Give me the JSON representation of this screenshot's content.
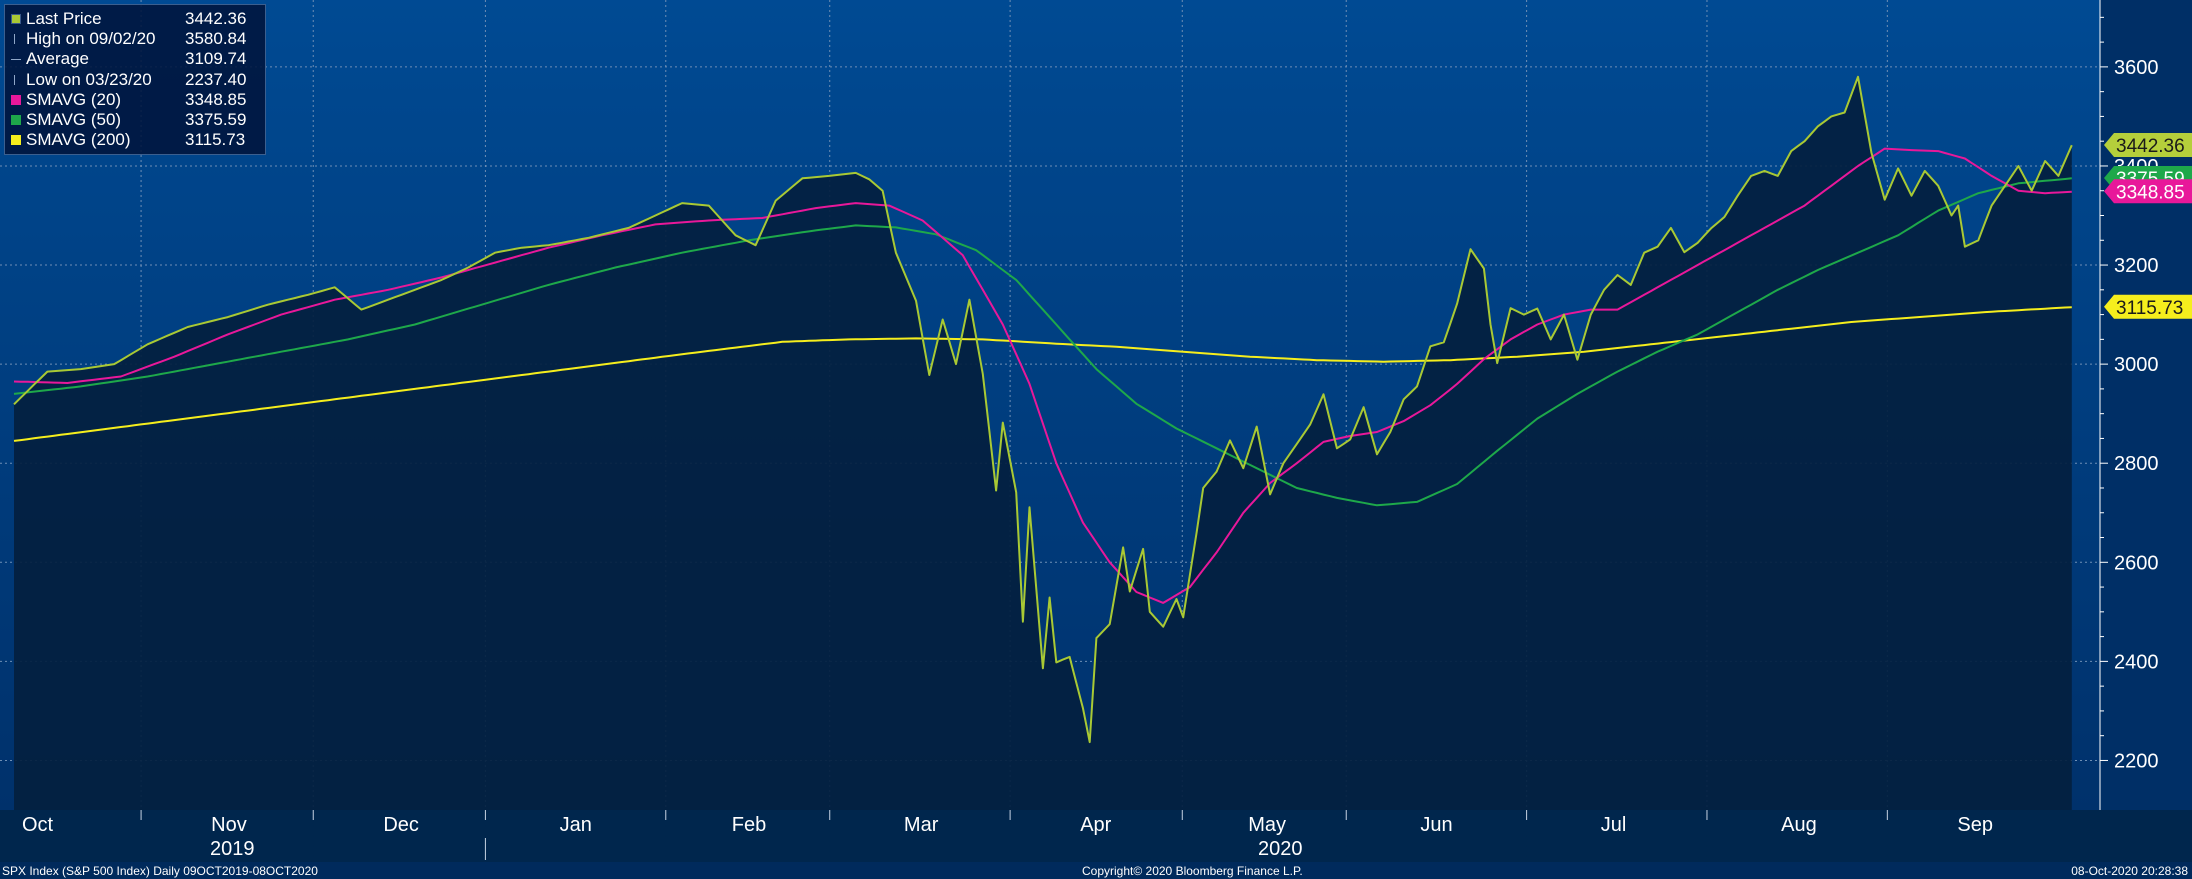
{
  "chart_data": {
    "type": "line",
    "title": "",
    "footer": {
      "left": "SPX Index (S&P 500 Index)  Daily 09OCT2019-08OCT2020",
      "center": "Copyright© 2020 Bloomberg Finance L.P.",
      "right": "08-Oct-2020 20:28:38"
    },
    "y_axis": {
      "position": "right",
      "min": 2100,
      "max": 3735,
      "ticks": [
        2200,
        2400,
        2600,
        2800,
        3000,
        3200,
        3400,
        3600
      ]
    },
    "x_axis": {
      "months": [
        "Oct",
        "Nov",
        "Dec",
        "Jan",
        "Feb",
        "Mar",
        "Apr",
        "May",
        "Jun",
        "Jul",
        "Aug",
        "Sep"
      ],
      "years": [
        "2019",
        "2020"
      ],
      "n_days": 252
    },
    "grid": true,
    "legend": {
      "placement": "top-left",
      "items": [
        {
          "label": "Last Price",
          "value": "3442.36"
        },
        {
          "label": "High on 09/02/20",
          "value": "3580.84"
        },
        {
          "label": "Average",
          "value": "3109.74"
        },
        {
          "label": "Low on 03/23/20",
          "value": "2237.40"
        },
        {
          "label": "SMAVG (20)",
          "value": "3348.85"
        },
        {
          "label": "SMAVG (50)",
          "value": "3375.59"
        },
        {
          "label": "SMAVG (200)",
          "value": "3115.73"
        }
      ]
    },
    "last_value_labels": [
      {
        "text": "3442.36",
        "value": 3442.36,
        "color": "#b5cf3b"
      },
      {
        "text": "3375.59",
        "value": 3375.59,
        "color": "#1ea84a"
      },
      {
        "text": "3348.85",
        "value": 3348.85,
        "color": "#e8189a"
      },
      {
        "text": "3115.73",
        "value": 3115.73,
        "color": "#f5ee1d"
      }
    ],
    "series": [
      {
        "name": "Last Price",
        "color": "#a9c934",
        "keypoints": [
          [
            0,
            2919
          ],
          [
            5,
            2985
          ],
          [
            10,
            2990
          ],
          [
            15,
            3000
          ],
          [
            20,
            3040
          ],
          [
            26,
            3075
          ],
          [
            32,
            3095
          ],
          [
            38,
            3120
          ],
          [
            44,
            3140
          ],
          [
            48,
            3155
          ],
          [
            52,
            3110
          ],
          [
            56,
            3130
          ],
          [
            60,
            3150
          ],
          [
            64,
            3170
          ],
          [
            68,
            3195
          ],
          [
            72,
            3225
          ],
          [
            76,
            3235
          ],
          [
            80,
            3240
          ],
          [
            86,
            3255
          ],
          [
            92,
            3275
          ],
          [
            96,
            3300
          ],
          [
            100,
            3325
          ],
          [
            104,
            3320
          ],
          [
            108,
            3260
          ],
          [
            111,
            3240
          ],
          [
            114,
            3330
          ],
          [
            118,
            3375
          ],
          [
            122,
            3380
          ],
          [
            126,
            3386
          ],
          [
            128,
            3373
          ],
          [
            130,
            3350
          ],
          [
            132,
            3225
          ],
          [
            135,
            3128
          ],
          [
            137,
            2978
          ],
          [
            139,
            3090
          ],
          [
            141,
            3000
          ],
          [
            143,
            3130
          ],
          [
            145,
            2980
          ],
          [
            147,
            2745
          ],
          [
            148,
            2882
          ],
          [
            150,
            2741
          ],
          [
            151,
            2480
          ],
          [
            152,
            2711
          ],
          [
            154,
            2386
          ],
          [
            155,
            2529
          ],
          [
            156,
            2398
          ],
          [
            158,
            2409
          ],
          [
            160,
            2305
          ],
          [
            161,
            2237
          ],
          [
            162,
            2447
          ],
          [
            164,
            2475
          ],
          [
            166,
            2630
          ],
          [
            167,
            2541
          ],
          [
            169,
            2627
          ],
          [
            170,
            2500
          ],
          [
            172,
            2470
          ],
          [
            174,
            2526
          ],
          [
            175,
            2489
          ],
          [
            177,
            2660
          ],
          [
            178,
            2750
          ],
          [
            180,
            2783
          ],
          [
            182,
            2846
          ],
          [
            184,
            2790
          ],
          [
            186,
            2874
          ],
          [
            188,
            2737
          ],
          [
            190,
            2800
          ],
          [
            194,
            2878
          ],
          [
            196,
            2939
          ],
          [
            198,
            2830
          ],
          [
            200,
            2848
          ],
          [
            202,
            2913
          ],
          [
            204,
            2818
          ],
          [
            206,
            2863
          ],
          [
            208,
            2929
          ],
          [
            210,
            2955
          ],
          [
            212,
            3036
          ],
          [
            214,
            3044
          ],
          [
            216,
            3122
          ],
          [
            218,
            3232
          ],
          [
            220,
            3193
          ],
          [
            221,
            3080
          ],
          [
            222,
            3002
          ],
          [
            224,
            3113
          ],
          [
            226,
            3100
          ],
          [
            228,
            3112
          ],
          [
            230,
            3050
          ],
          [
            232,
            3100
          ],
          [
            234,
            3009
          ],
          [
            236,
            3100
          ],
          [
            238,
            3150
          ],
          [
            240,
            3180
          ],
          [
            242,
            3160
          ],
          [
            244,
            3225
          ],
          [
            246,
            3237
          ],
          [
            248,
            3275
          ],
          [
            250,
            3226
          ],
          [
            252,
            3245
          ],
          [
            254,
            3274
          ],
          [
            256,
            3297
          ],
          [
            258,
            3340
          ],
          [
            260,
            3380
          ],
          [
            262,
            3390
          ],
          [
            264,
            3380
          ],
          [
            266,
            3430
          ],
          [
            268,
            3450
          ],
          [
            270,
            3480
          ],
          [
            272,
            3500
          ],
          [
            274,
            3508
          ],
          [
            276,
            3580
          ],
          [
            278,
            3427
          ],
          [
            280,
            3332
          ],
          [
            282,
            3395
          ],
          [
            284,
            3340
          ],
          [
            286,
            3390
          ],
          [
            288,
            3360
          ],
          [
            290,
            3300
          ],
          [
            291,
            3320
          ],
          [
            292,
            3237
          ],
          [
            294,
            3250
          ],
          [
            296,
            3320
          ],
          [
            298,
            3360
          ],
          [
            300,
            3400
          ],
          [
            302,
            3350
          ],
          [
            304,
            3410
          ],
          [
            306,
            3380
          ],
          [
            308,
            3442
          ]
        ]
      },
      {
        "name": "SMAVG (20)",
        "color": "#e8189a",
        "keypoints": [
          [
            0,
            2965
          ],
          [
            8,
            2962
          ],
          [
            16,
            2975
          ],
          [
            24,
            3015
          ],
          [
            32,
            3060
          ],
          [
            40,
            3100
          ],
          [
            48,
            3130
          ],
          [
            56,
            3150
          ],
          [
            64,
            3175
          ],
          [
            72,
            3205
          ],
          [
            80,
            3235
          ],
          [
            88,
            3260
          ],
          [
            96,
            3282
          ],
          [
            104,
            3290
          ],
          [
            112,
            3295
          ],
          [
            120,
            3315
          ],
          [
            126,
            3325
          ],
          [
            131,
            3320
          ],
          [
            136,
            3290
          ],
          [
            142,
            3220
          ],
          [
            148,
            3080
          ],
          [
            152,
            2960
          ],
          [
            156,
            2800
          ],
          [
            160,
            2680
          ],
          [
            164,
            2600
          ],
          [
            168,
            2540
          ],
          [
            172,
            2518
          ],
          [
            176,
            2550
          ],
          [
            180,
            2620
          ],
          [
            184,
            2700
          ],
          [
            188,
            2760
          ],
          [
            192,
            2800
          ],
          [
            196,
            2843
          ],
          [
            200,
            2855
          ],
          [
            204,
            2863
          ],
          [
            208,
            2885
          ],
          [
            212,
            2917
          ],
          [
            216,
            2960
          ],
          [
            220,
            3010
          ],
          [
            224,
            3050
          ],
          [
            228,
            3080
          ],
          [
            232,
            3100
          ],
          [
            236,
            3110
          ],
          [
            240,
            3110
          ],
          [
            244,
            3140
          ],
          [
            248,
            3170
          ],
          [
            252,
            3200
          ],
          [
            256,
            3230
          ],
          [
            260,
            3260
          ],
          [
            264,
            3290
          ],
          [
            268,
            3320
          ],
          [
            272,
            3360
          ],
          [
            276,
            3400
          ],
          [
            280,
            3435
          ],
          [
            284,
            3432
          ],
          [
            288,
            3430
          ],
          [
            292,
            3415
          ],
          [
            296,
            3380
          ],
          [
            300,
            3350
          ],
          [
            304,
            3345
          ],
          [
            308,
            3348
          ]
        ]
      },
      {
        "name": "SMAVG (50)",
        "color": "#1ea84a",
        "keypoints": [
          [
            0,
            2940
          ],
          [
            10,
            2955
          ],
          [
            20,
            2975
          ],
          [
            30,
            3000
          ],
          [
            40,
            3025
          ],
          [
            50,
            3050
          ],
          [
            60,
            3080
          ],
          [
            70,
            3120
          ],
          [
            80,
            3160
          ],
          [
            90,
            3195
          ],
          [
            100,
            3225
          ],
          [
            110,
            3250
          ],
          [
            120,
            3270
          ],
          [
            126,
            3280
          ],
          [
            132,
            3276
          ],
          [
            138,
            3262
          ],
          [
            144,
            3230
          ],
          [
            150,
            3170
          ],
          [
            156,
            3080
          ],
          [
            162,
            2990
          ],
          [
            168,
            2920
          ],
          [
            174,
            2870
          ],
          [
            180,
            2830
          ],
          [
            186,
            2790
          ],
          [
            192,
            2750
          ],
          [
            198,
            2730
          ],
          [
            204,
            2715
          ],
          [
            210,
            2722
          ],
          [
            216,
            2758
          ],
          [
            222,
            2825
          ],
          [
            228,
            2890
          ],
          [
            234,
            2940
          ],
          [
            240,
            2985
          ],
          [
            246,
            3025
          ],
          [
            252,
            3060
          ],
          [
            258,
            3105
          ],
          [
            264,
            3150
          ],
          [
            270,
            3190
          ],
          [
            276,
            3225
          ],
          [
            282,
            3260
          ],
          [
            288,
            3310
          ],
          [
            294,
            3345
          ],
          [
            300,
            3365
          ],
          [
            304,
            3370
          ],
          [
            308,
            3375
          ]
        ]
      },
      {
        "name": "SMAVG (200)",
        "color": "#f5ee1d",
        "keypoints": [
          [
            0,
            2845
          ],
          [
            20,
            2880
          ],
          [
            40,
            2915
          ],
          [
            60,
            2950
          ],
          [
            80,
            2985
          ],
          [
            100,
            3020
          ],
          [
            115,
            3045
          ],
          [
            125,
            3050
          ],
          [
            135,
            3052
          ],
          [
            145,
            3050
          ],
          [
            155,
            3042
          ],
          [
            165,
            3035
          ],
          [
            175,
            3025
          ],
          [
            185,
            3015
          ],
          [
            195,
            3008
          ],
          [
            205,
            3005
          ],
          [
            215,
            3008
          ],
          [
            225,
            3015
          ],
          [
            235,
            3025
          ],
          [
            245,
            3040
          ],
          [
            255,
            3055
          ],
          [
            265,
            3070
          ],
          [
            275,
            3085
          ],
          [
            285,
            3095
          ],
          [
            295,
            3105
          ],
          [
            308,
            3115
          ]
        ]
      }
    ]
  }
}
